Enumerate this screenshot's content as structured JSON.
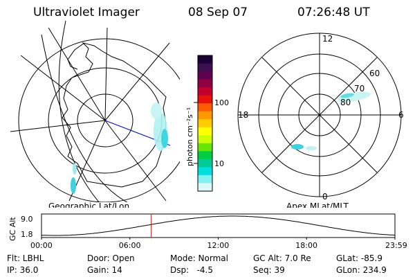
{
  "header": {
    "title": "Ultraviolet Imager",
    "date": "08 Sep 07",
    "time": "07:26:48 UT"
  },
  "geo_panel": {
    "label": "Geographic Lat/Lon"
  },
  "mlt_panel": {
    "label": "Apex MLat/MLT",
    "hour_labels": {
      "top": "12",
      "bottom": "0",
      "left": "18",
      "right": "6"
    },
    "lat_labels": [
      "60",
      "70",
      "80"
    ]
  },
  "colorbar": {
    "unit_label": "photon cm⁻²s⁻¹",
    "tick_labels": [
      "100",
      "10"
    ],
    "colors": [
      "#1a0033",
      "#3a1050",
      "#600050",
      "#900040",
      "#c0002a",
      "#e8100a",
      "#ff5a00",
      "#ff9900",
      "#ffcc00",
      "#ffff00",
      "#ccff00",
      "#66e600",
      "#00cc44",
      "#00cc99",
      "#00e0e0",
      "#80f0f0",
      "#ddf8f8"
    ]
  },
  "altitude": {
    "axis_label": "GC Alt",
    "ticks": [
      "9.0",
      "1.8"
    ],
    "time_ticks": [
      "00:00",
      "06:00",
      "12:00",
      "18:00",
      "23:59"
    ],
    "current_time_hours": 7.45,
    "colors": {
      "marker": "#ff0000",
      "curve": "#000000"
    }
  },
  "info": {
    "filter": "Flt: LBHL",
    "ip": "IP: 36.0",
    "door": "Door: Open",
    "gain": "Gain: 14",
    "mode": "Mode: Normal",
    "dsp": "Dsp:   -4.5",
    "gc_alt": "GC Alt: 7.0 Re",
    "seq": "Seq: 39",
    "glat": "GLat: -85.9",
    "glon": "GLon: 234.9"
  }
}
